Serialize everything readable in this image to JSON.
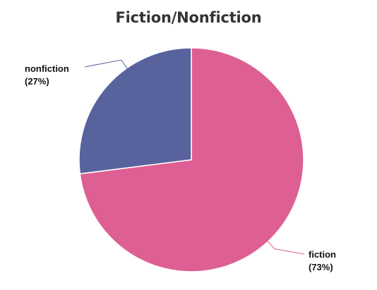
{
  "chart_data": {
    "type": "pie",
    "title": "Fiction/Nonfiction",
    "slices": [
      {
        "label": "fiction",
        "percent_label": "(73%)",
        "value": 73,
        "color": "#de5f93"
      },
      {
        "label": "nonfiction",
        "percent_label": "(27%)",
        "value": 27,
        "color": "#58629d"
      }
    ],
    "start_angle_deg": 0,
    "direction": "clockwise",
    "legend": "none",
    "label_placement": "outside-with-leader-lines"
  }
}
